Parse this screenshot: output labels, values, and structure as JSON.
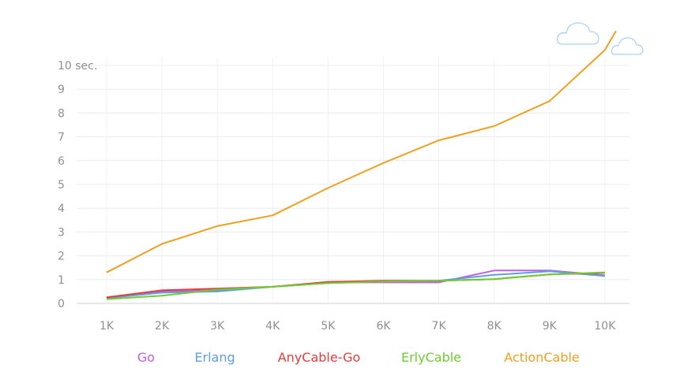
{
  "chart_data": {
    "type": "line",
    "categories": [
      "1K",
      "2K",
      "3K",
      "4K",
      "5K",
      "6K",
      "7K",
      "8K",
      "9K",
      "10K"
    ],
    "y_ticks": [
      "0",
      "1",
      "2",
      "3",
      "4",
      "5",
      "6",
      "7",
      "8",
      "9",
      "10 sec."
    ],
    "ylim": [
      0,
      10
    ],
    "grid": true,
    "legend_position": "bottom",
    "series": [
      {
        "name": "Go",
        "color": "#c15ee8",
        "values": [
          0.25,
          0.5,
          0.55,
          0.7,
          0.88,
          0.88,
          0.88,
          1.38,
          1.38,
          1.18
        ]
      },
      {
        "name": "Erlang",
        "color": "#5d9fe3",
        "values": [
          0.22,
          0.45,
          0.5,
          0.7,
          0.85,
          0.92,
          0.95,
          1.2,
          1.35,
          1.15
        ]
      },
      {
        "name": "AnyCable-Go",
        "color": "#ea3b3b",
        "values": [
          0.25,
          0.55,
          0.62,
          0.7,
          0.9,
          0.95,
          0.95,
          1.02,
          1.22,
          1.28
        ]
      },
      {
        "name": "ErlyCable",
        "color": "#6ccf2c",
        "values": [
          0.18,
          0.32,
          0.58,
          0.7,
          0.85,
          0.92,
          0.95,
          1.02,
          1.22,
          1.3
        ]
      },
      {
        "name": "ActionCable",
        "color": "#f0a020",
        "values": [
          1.3,
          2.5,
          3.25,
          3.7,
          4.85,
          5.9,
          6.85,
          7.45,
          8.5,
          10.65
        ]
      }
    ]
  },
  "clouds_icon": "cloud-icon"
}
